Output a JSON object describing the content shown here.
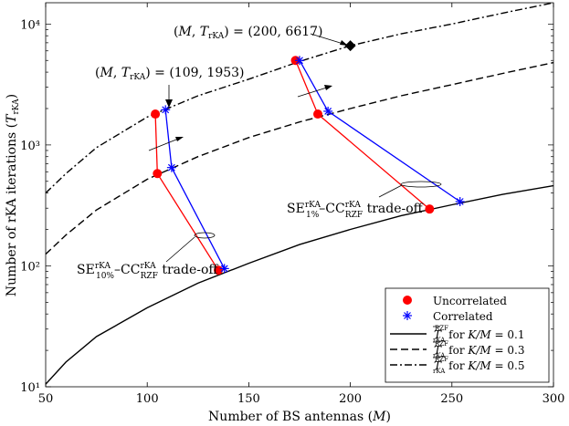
{
  "chart_data": {
    "type": "line",
    "xlabel": "Number of BS antennas (M)",
    "ylabel": "Number of rKA iterations (T_rKA)",
    "xlim": [
      50,
      300
    ],
    "ylim": [
      10,
      15000
    ],
    "yscale": "log",
    "x_ticks": [
      50,
      100,
      150,
      200,
      250,
      300
    ],
    "x_tick_labels": [
      "50",
      "100",
      "150",
      "200",
      "250",
      "300"
    ],
    "y_ticks": [
      10,
      100,
      1000,
      10000
    ],
    "y_tick_labels": [
      "10¹",
      "10²",
      "10³",
      "10⁴"
    ],
    "series": [
      {
        "name": "T̄ rKA (RZF) for K/M = 0.1",
        "style": "solid",
        "ratio": 0.1,
        "x": [
          50,
          60,
          75,
          100,
          125,
          150,
          175,
          200,
          225,
          250,
          275,
          300
        ],
        "y": [
          10.5,
          16,
          26,
          45,
          72,
          105,
          150,
          200,
          260,
          320,
          390,
          460
        ]
      },
      {
        "name": "T̄ rKA (RZF) for K/M = 0.3",
        "style": "dashed",
        "ratio": 0.3,
        "x": [
          50,
          60,
          75,
          100,
          125,
          150,
          175,
          200,
          225,
          250,
          275,
          300
        ],
        "y": [
          125,
          180,
          290,
          520,
          800,
          1150,
          1550,
          2000,
          2550,
          3150,
          3900,
          4800
        ]
      },
      {
        "name": "T̄ rKA (RZF) for K/M = 0.5",
        "style": "dashdot",
        "ratio": 0.5,
        "x": [
          50,
          60,
          75,
          100,
          125,
          150,
          175,
          200,
          225,
          250,
          275,
          300
        ],
        "y": [
          400,
          580,
          950,
          1700,
          2550,
          3500,
          4900,
          6617,
          8300,
          10000,
          12300,
          15000
        ]
      }
    ],
    "tradeoff_uncorrelated": [
      {
        "name": "Uncorrelated 10%",
        "x": [
          104,
          105,
          135
        ],
        "y": [
          1800,
          580,
          92
        ]
      },
      {
        "name": "Uncorrelated 1%",
        "x": [
          173,
          184,
          239
        ],
        "y": [
          5000,
          1800,
          295
        ]
      }
    ],
    "tradeoff_correlated": [
      {
        "name": "Correlated 10%",
        "x": [
          109,
          112,
          138
        ],
        "y": [
          1953,
          650,
          95
        ]
      },
      {
        "name": "Correlated 1%",
        "x": [
          175,
          189,
          254
        ],
        "y": [
          5000,
          1900,
          340
        ]
      }
    ],
    "highlight_point": {
      "x": 200,
      "y": 6617
    },
    "annotations": {
      "point1": {
        "math_open": "(M, T",
        "math_sub": "rKA",
        "math_close": ") = (200, 6617)",
        "x": 200,
        "y": 6617
      },
      "point2": {
        "math_open": "(M, T",
        "math_sub": "rKA",
        "math_close": ") = (109, 1953)",
        "x": 109,
        "y": 1953
      },
      "tradeoff10": {
        "se": "SE",
        "se_sup": "rKA",
        "se_sub": "10%",
        "dash": "–CC",
        "cc_sup": "rKA",
        "cc_sub": "RZF",
        "suffix": " trade-off"
      },
      "tradeoff1": {
        "se": "SE",
        "se_sup": "rKA",
        "se_sub": "1%",
        "dash": "–CC",
        "cc_sup": "rKA",
        "cc_sub": "RZF",
        "suffix": " trade-off"
      }
    },
    "legend": {
      "position": "bottom-right",
      "uncorrelated": "Uncorrelated",
      "correlated": "Correlated",
      "line_T": "T",
      "line_sup": "RZF",
      "line_sub": "rKA",
      "line_for": " for ",
      "line_km": "K/M",
      "eq1": " = 0.1",
      "eq3": " = 0.3",
      "eq5": " = 0.5"
    },
    "colors": {
      "uncorrelated": "#ff0000",
      "correlated": "#0000ff",
      "lines": "#000000"
    }
  }
}
